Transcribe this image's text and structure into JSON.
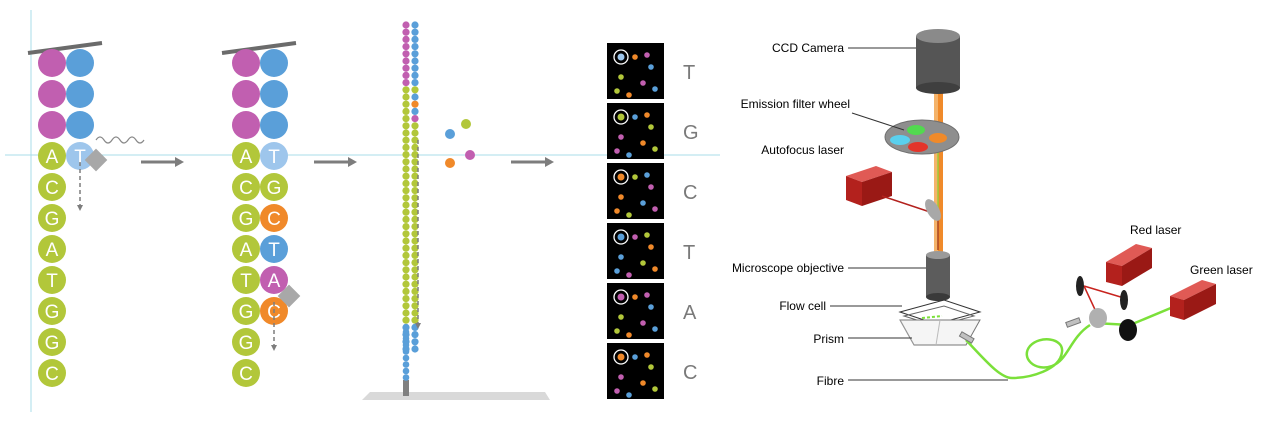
{
  "colors": {
    "purple": "#c15fb0",
    "blue": "#5a9fd9",
    "green": "#b2c73a",
    "orange": "#f0892a",
    "light_blue": "#9ec6ec",
    "guide": "#a8dde8",
    "arrow": "#7d7d7d",
    "laser_red": "#c8231e",
    "fibre_green": "#7be03a"
  },
  "strand1": {
    "anchored": [
      "purple",
      "purple",
      "purple"
    ],
    "template_letters": [
      "A",
      "C",
      "G",
      "A",
      "T",
      "G",
      "G",
      "C"
    ],
    "incoming": {
      "letter": "T"
    }
  },
  "strand2": {
    "anchored": [
      "purple",
      "purple",
      "purple"
    ],
    "template_letters": [
      "A",
      "C",
      "G",
      "A",
      "T",
      "G",
      "G",
      "C"
    ],
    "paired_letters": [
      "T",
      "G",
      "C",
      "T",
      "A",
      "C"
    ]
  },
  "cluster_colors": [
    "purple",
    "blue",
    "blue"
  ],
  "free_nucleotides": [
    "green",
    "blue",
    "orange",
    "purple"
  ],
  "read_letters": [
    "T",
    "G",
    "C",
    "T",
    "A",
    "C"
  ],
  "instrument": {
    "labels": {
      "ccd_camera": "CCD Camera",
      "emission_filter_wheel": "Emission filter wheel",
      "autofocus_laser": "Autofocus laser",
      "microscope_objective": "Microscope objective",
      "flow_cell": "Flow cell",
      "prism": "Prism",
      "fibre": "Fibre",
      "red_laser": "Red laser",
      "green_laser": "Green  laser"
    }
  }
}
